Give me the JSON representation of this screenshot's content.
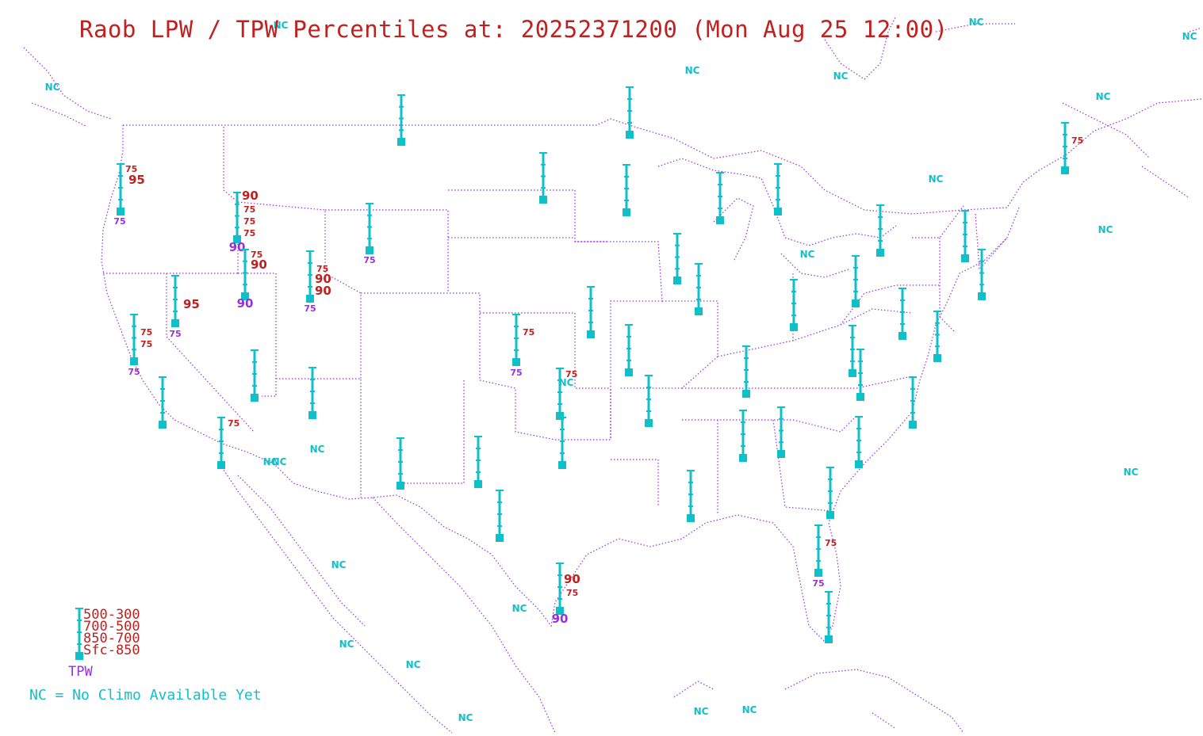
{
  "title": "Raob LPW / TPW Percentiles at: 20252371200 (Mon Aug 25 12:00)",
  "legend": {
    "layers": [
      "500-300",
      "700-500",
      "850-700",
      "Sfc-850"
    ],
    "tpw_label": "TPW",
    "nc_note": "NC = No Climo Available Yet"
  },
  "colors": {
    "station": "#10c0c8",
    "lpw_text": "#c02020",
    "tpw_text": "#9a30d8",
    "border": "#9a30d8",
    "nc_text": "#10c0c8"
  },
  "stations": [
    {
      "id": "s1",
      "lpw": [
        "",
        "",
        "75",
        "95"
      ],
      "tpw": "75"
    },
    {
      "id": "s2",
      "lpw": [
        "90",
        "75",
        "75",
        "75"
      ],
      "tpw": "90"
    },
    {
      "id": "s3",
      "lpw": [
        "",
        "75",
        "90",
        ""
      ],
      "tpw": "90"
    },
    {
      "id": "s4",
      "lpw": [
        "",
        "75",
        "90",
        "90"
      ],
      "tpw": "75"
    },
    {
      "id": "s5",
      "lpw": [
        "",
        "",
        "",
        "95"
      ],
      "tpw": "75"
    },
    {
      "id": "s6",
      "lpw": [
        "",
        "",
        "75",
        "75"
      ],
      "tpw": "75"
    },
    {
      "id": "s7",
      "lpw": [
        "",
        "",
        "",
        ""
      ],
      "tpw": "75"
    },
    {
      "id": "s8",
      "lpw": [
        "",
        "",
        "",
        "75"
      ],
      "tpw": ""
    },
    {
      "id": "s9",
      "lpw": [
        "",
        "",
        "",
        "75"
      ],
      "tpw": "75"
    },
    {
      "id": "s10",
      "lpw": [
        "",
        "",
        "",
        "75"
      ],
      "tpw": ""
    },
    {
      "id": "s11",
      "lpw": [
        "",
        "",
        "90",
        "75"
      ],
      "tpw": "90"
    },
    {
      "id": "s12",
      "lpw": [
        "",
        "",
        "",
        "75"
      ],
      "tpw": ""
    },
    {
      "id": "s13",
      "lpw": [
        "",
        "",
        "",
        "75"
      ],
      "tpw": "75"
    },
    {
      "id": "s14",
      "lpw": [
        "",
        "",
        "",
        ""
      ],
      "tpw": ""
    }
  ],
  "nc_labels": [
    "NC",
    "NC",
    "NC",
    "NC",
    "NC",
    "NC",
    "NC",
    "NC",
    "NC",
    "NC",
    "NC",
    "NC",
    "NC",
    "NC",
    "NC",
    "NC",
    "NC",
    "NC",
    "NC",
    "NC",
    "NC",
    "NC"
  ]
}
